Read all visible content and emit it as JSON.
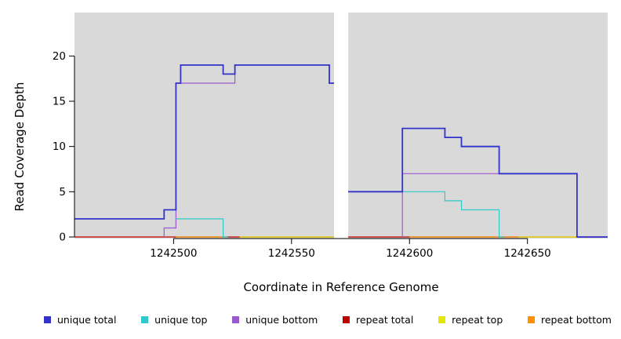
{
  "colors": {
    "background": "#ffffff",
    "panel": "#d9d9d9",
    "gap": "#ffffff",
    "axis": "#000000"
  },
  "chart_data": {
    "type": "line",
    "step": true,
    "title": "",
    "xlabel": "Coordinate in Reference Genome",
    "ylabel": "Read Coverage Depth",
    "xlim": [
      1242458,
      1242684
    ],
    "ylim": [
      0,
      24.8
    ],
    "grid": false,
    "legend_position": "bottom",
    "gap": [
      1242568,
      1242574
    ],
    "xticks": [
      {
        "value": 1242500,
        "label": "1242500"
      },
      {
        "value": 1242550,
        "label": "1242550"
      },
      {
        "value": 1242600,
        "label": "1242600"
      },
      {
        "value": 1242650,
        "label": "1242650"
      }
    ],
    "yticks": [
      {
        "value": 0,
        "label": "0"
      },
      {
        "value": 5,
        "label": "5"
      },
      {
        "value": 10,
        "label": "10"
      },
      {
        "value": 15,
        "label": "15"
      },
      {
        "value": 20,
        "label": "20"
      }
    ],
    "draw_order": [
      3,
      4,
      5,
      2,
      1,
      0
    ],
    "series": [
      {
        "name": "unique total",
        "color": "#3333cc",
        "width": 1.8,
        "segments": [
          [
            [
              1242458,
              2
            ],
            [
              1242496,
              2
            ],
            [
              1242496,
              3
            ],
            [
              1242501,
              3
            ],
            [
              1242501,
              17
            ],
            [
              1242503,
              17
            ],
            [
              1242503,
              19
            ],
            [
              1242521,
              19
            ],
            [
              1242521,
              18
            ],
            [
              1242526,
              18
            ],
            [
              1242526,
              19
            ],
            [
              1242566,
              19
            ],
            [
              1242566,
              17
            ],
            [
              1242568,
              17
            ]
          ],
          [
            [
              1242574,
              5
            ],
            [
              1242597,
              5
            ],
            [
              1242597,
              12
            ],
            [
              1242615,
              12
            ],
            [
              1242615,
              11
            ],
            [
              1242622,
              11
            ],
            [
              1242622,
              10
            ],
            [
              1242638,
              10
            ],
            [
              1242638,
              7
            ],
            [
              1242671,
              7
            ],
            [
              1242671,
              0
            ],
            [
              1242684,
              0
            ]
          ]
        ]
      },
      {
        "name": "unique top",
        "color": "#2fc9c9",
        "width": 1.2,
        "segments": [
          [
            [
              1242501,
              2
            ],
            [
              1242521,
              2
            ],
            [
              1242521,
              0
            ],
            [
              1242523,
              0
            ]
          ],
          [
            [
              1242574,
              5
            ],
            [
              1242615,
              5
            ],
            [
              1242615,
              4
            ],
            [
              1242622,
              4
            ],
            [
              1242622,
              3
            ],
            [
              1242638,
              3
            ],
            [
              1242638,
              0
            ],
            [
              1242640,
              0
            ]
          ]
        ]
      },
      {
        "name": "unique bottom",
        "color": "#9b59d0",
        "width": 1.2,
        "segments": [
          [
            [
              1242496,
              0
            ],
            [
              1242496,
              1
            ],
            [
              1242501,
              1
            ],
            [
              1242501,
              17
            ],
            [
              1242526,
              17
            ],
            [
              1242526,
              19
            ],
            [
              1242566,
              19
            ],
            [
              1242566,
              17
            ],
            [
              1242568,
              17
            ]
          ],
          [
            [
              1242597,
              0
            ],
            [
              1242597,
              7
            ],
            [
              1242671,
              7
            ],
            [
              1242671,
              0
            ],
            [
              1242674,
              0
            ]
          ]
        ]
      },
      {
        "name": "repeat total",
        "color": "#c00000",
        "width": 1.2,
        "segments": [
          [
            [
              1242458,
              0
            ],
            [
              1242568,
              0
            ]
          ],
          [
            [
              1242574,
              0
            ],
            [
              1242684,
              0
            ]
          ]
        ]
      },
      {
        "name": "repeat top",
        "color": "#e6e600",
        "width": 1.2,
        "segments": [
          [
            [
              1242528,
              0
            ],
            [
              1242568,
              0
            ]
          ],
          [
            [
              1242646,
              0
            ],
            [
              1242684,
              0
            ]
          ]
        ]
      },
      {
        "name": "repeat bottom",
        "color": "#ff9100",
        "width": 1.2,
        "segments": [
          [
            [
              1242501,
              0
            ],
            [
              1242523,
              0
            ]
          ],
          [
            [
              1242600,
              0
            ],
            [
              1242646,
              0
            ]
          ]
        ]
      }
    ]
  }
}
